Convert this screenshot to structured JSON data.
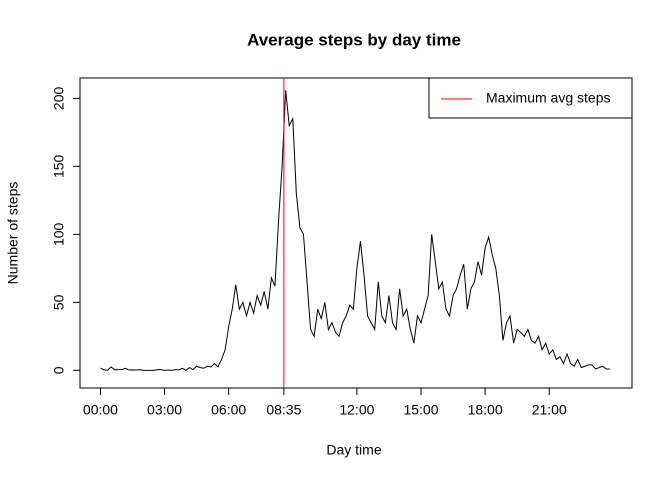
{
  "chart_data": {
    "type": "line",
    "title": "Average steps by day time",
    "x_label": "Day time",
    "y_label": "Number of steps",
    "x": [
      0,
      10,
      20,
      30,
      40,
      50,
      60,
      70,
      80,
      90,
      100,
      110,
      120,
      130,
      140,
      150,
      160,
      170,
      180,
      190,
      200,
      210,
      220,
      230,
      240,
      250,
      260,
      270,
      280,
      290,
      300,
      310,
      320,
      330,
      340,
      350,
      360,
      370,
      380,
      390,
      400,
      410,
      420,
      430,
      440,
      450,
      460,
      470,
      480,
      490,
      500,
      510,
      520,
      530,
      540,
      550,
      560,
      570,
      580,
      590,
      600,
      610,
      620,
      630,
      640,
      650,
      660,
      670,
      680,
      690,
      700,
      710,
      720,
      730,
      740,
      750,
      760,
      770,
      780,
      790,
      800,
      810,
      820,
      830,
      840,
      850,
      860,
      870,
      880,
      890,
      900,
      910,
      920,
      930,
      940,
      950,
      960,
      970,
      980,
      990,
      1000,
      1010,
      1020,
      1030,
      1040,
      1050,
      1060,
      1070,
      1080,
      1090,
      1100,
      1110,
      1120,
      1130,
      1140,
      1150,
      1160,
      1170,
      1180,
      1190,
      1200,
      1210,
      1220,
      1230,
      1240,
      1250,
      1260,
      1270,
      1280,
      1290,
      1300,
      1310,
      1320,
      1330,
      1340,
      1350,
      1360,
      1370,
      1380,
      1390,
      1400,
      1410,
      1420,
      1430
    ],
    "series": [
      {
        "name": "Average steps",
        "color": "#000000",
        "values": [
          1.7,
          0.3,
          0.1,
          2.5,
          0.3,
          0.5,
          0.5,
          1.5,
          0.2,
          0.3,
          0.2,
          0.5,
          0,
          0,
          0,
          0,
          0.5,
          0.5,
          0,
          0.2,
          0,
          0.5,
          0.3,
          1.5,
          0,
          2,
          0.5,
          3,
          2,
          1.5,
          3,
          2.5,
          5,
          2.5,
          8,
          15,
          32,
          45,
          63,
          45,
          50,
          40,
          50,
          42,
          55,
          48,
          58,
          45,
          68,
          62,
          110,
          150,
          206,
          180,
          185,
          130,
          105,
          100,
          65,
          30,
          25,
          45,
          38,
          50,
          30,
          35,
          28,
          25,
          35,
          40,
          48,
          45,
          75,
          95,
          70,
          40,
          35,
          30,
          65,
          40,
          35,
          55,
          35,
          30,
          60,
          40,
          45,
          30,
          20,
          40,
          35,
          45,
          55,
          100,
          80,
          60,
          65,
          45,
          40,
          55,
          60,
          70,
          78,
          45,
          60,
          65,
          80,
          70,
          90,
          98,
          85,
          75,
          55,
          22,
          35,
          40,
          20,
          30,
          28,
          25,
          30,
          22,
          20,
          25,
          15,
          20,
          12,
          15,
          8,
          10,
          5,
          12,
          5,
          3,
          8,
          2,
          3,
          4,
          4,
          1,
          2,
          3,
          1,
          1
        ]
      }
    ],
    "vline": {
      "name": "Maximum avg steps",
      "x": 515,
      "color": "#ff0000"
    },
    "xlim": [
      -57.4,
      1492.4
    ],
    "ylim": [
      -13,
      215
    ],
    "xticks": [
      {
        "value": 0,
        "label": "00:00"
      },
      {
        "value": 180,
        "label": "03:00"
      },
      {
        "value": 360,
        "label": "06:00"
      },
      {
        "value": 515,
        "label": "08:35"
      },
      {
        "value": 720,
        "label": "12:00"
      },
      {
        "value": 900,
        "label": "15:00"
      },
      {
        "value": 1080,
        "label": "18:00"
      },
      {
        "value": 1260,
        "label": "21:00"
      }
    ],
    "yticks": [
      0,
      50,
      100,
      150,
      200
    ],
    "legend": "top-right"
  }
}
